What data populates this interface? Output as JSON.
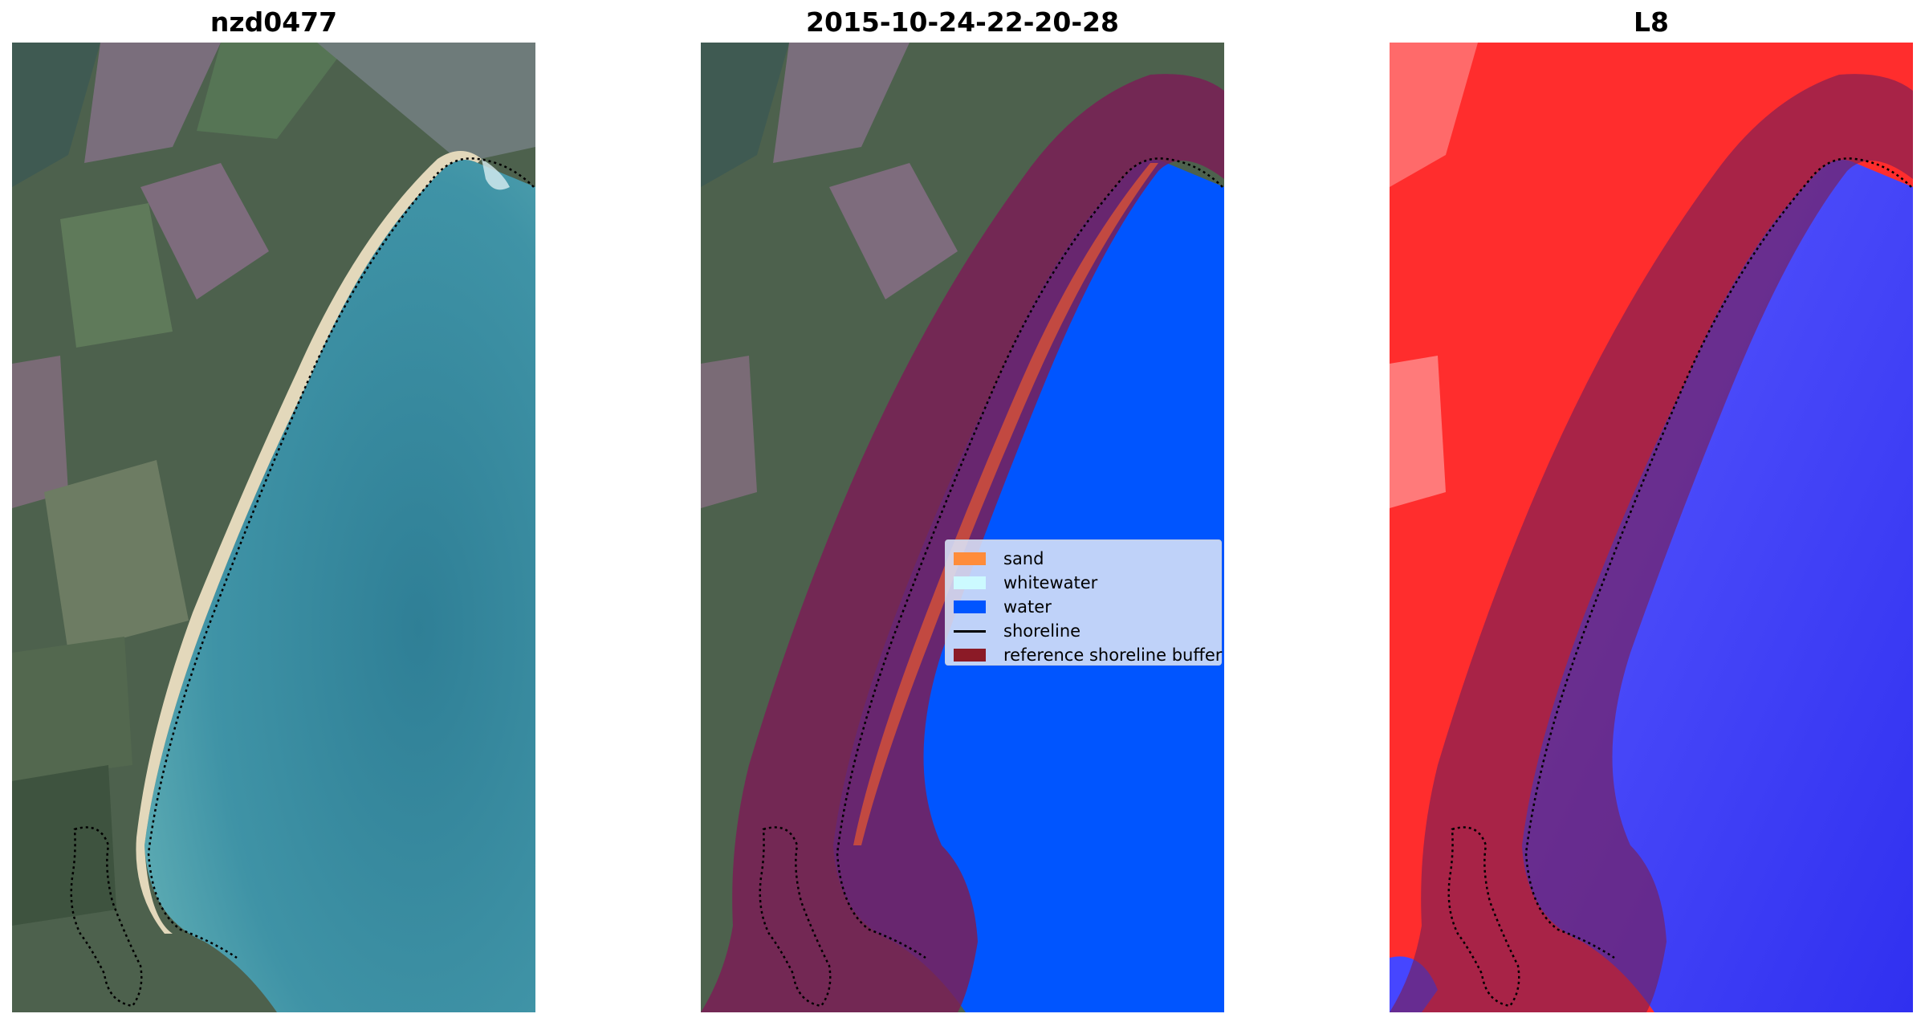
{
  "panels": [
    {
      "title": "nzd0477"
    },
    {
      "title": "2015-10-24-22-20-28"
    },
    {
      "title": "L8"
    }
  ],
  "legend": {
    "items": [
      {
        "label": "sand",
        "color": "#ff8c3a"
      },
      {
        "label": "whitewater",
        "color": "#ccfaff"
      },
      {
        "label": "water",
        "color": "#0055ff"
      },
      {
        "label": "shoreline",
        "color": "#000000"
      },
      {
        "label": "reference shoreline buffer",
        "color": "#8b1a26"
      }
    ]
  },
  "colors": {
    "land": "#4b5f4a",
    "sea": "#3f8a9c",
    "beach": "#e6ddc2",
    "buffer": "#7a1f56",
    "water_class": "#0055ff",
    "index_land": "#ff2a2a",
    "index_water": "#3a3aff"
  }
}
